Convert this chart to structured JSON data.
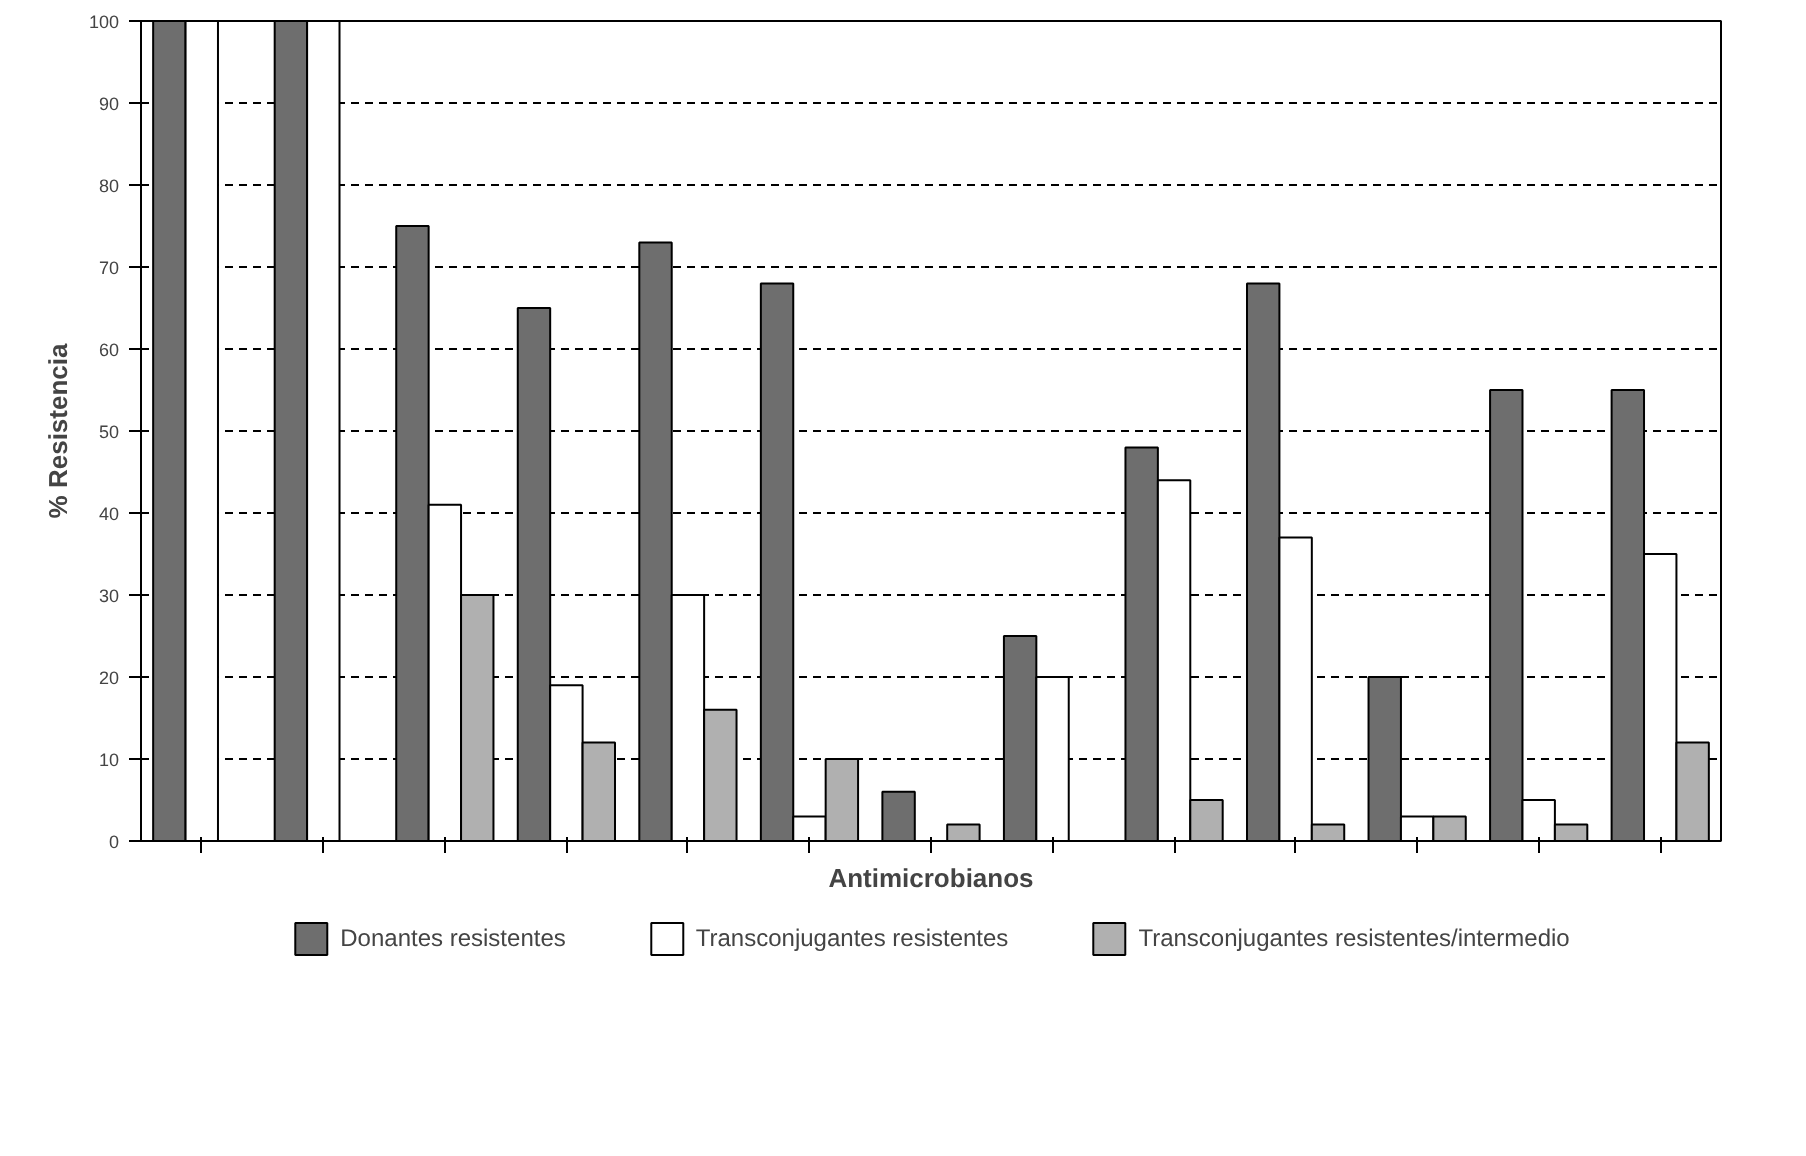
{
  "chart_data": {
    "type": "bar",
    "xlabel": "Antimicrobianos",
    "ylabel": "% Resistencia",
    "categories": [
      null,
      null,
      null,
      null,
      null,
      null,
      null,
      null,
      null,
      null,
      null,
      null,
      null
    ],
    "series": [
      {
        "name": "Donantes resistentes",
        "color": "#6e6e6e",
        "values": [
          100,
          100,
          75,
          65,
          73,
          68,
          6,
          25,
          48,
          68,
          20,
          55,
          55
        ]
      },
      {
        "name": "Transconjugantes resistentes",
        "color": "#ffffff",
        "values": [
          100,
          100,
          41,
          19,
          30,
          3,
          null,
          20,
          44,
          37,
          3,
          5,
          35
        ]
      },
      {
        "name": "Transconjugantes resistentes/intermedio",
        "color": "#b0b0b0",
        "values": [
          null,
          null,
          30,
          12,
          16,
          10,
          2,
          null,
          5,
          2,
          3,
          2,
          12
        ]
      }
    ],
    "ylim": [
      0,
      100
    ],
    "yticks": [
      0,
      10,
      20,
      30,
      40,
      50,
      60,
      70,
      80,
      90,
      100
    ],
    "grid": "y",
    "legend": "bottom"
  }
}
